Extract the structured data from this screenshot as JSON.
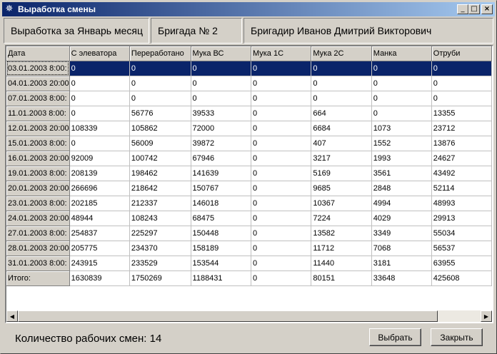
{
  "window": {
    "title": "Выработка смены",
    "minimize_glyph": "_",
    "maximize_glyph": "□",
    "close_glyph": "×",
    "icon": "gear-icon",
    "titlebar_color": "#0a246a"
  },
  "info": {
    "period": "Выработка за Январь месяц",
    "brigade": "Бригада № 2",
    "foreman": "Бригадир Иванов Дмитрий Викторович"
  },
  "table": {
    "columns": [
      "Дата",
      "С элеватора",
      "Переработано",
      "Мука ВС",
      "Мука 1С",
      "Мука 2С",
      "Манка",
      "Отруби"
    ],
    "rows": [
      [
        "03.01.2003 8:00:",
        "0",
        "0",
        "0",
        "0",
        "0",
        "0",
        "0"
      ],
      [
        "04.01.2003 20:00",
        "0",
        "0",
        "0",
        "0",
        "0",
        "0",
        "0"
      ],
      [
        "07.01.2003 8:00:",
        "0",
        "0",
        "0",
        "0",
        "0",
        "0",
        "0"
      ],
      [
        "11.01.2003 8:00:",
        "0",
        "56776",
        "39533",
        "0",
        "664",
        "0",
        "13355"
      ],
      [
        "12.01.2003 20:00",
        "108339",
        "105862",
        "72000",
        "0",
        "6684",
        "1073",
        "23712"
      ],
      [
        "15.01.2003 8:00:",
        "0",
        "56009",
        "39872",
        "0",
        "407",
        "1552",
        "13876"
      ],
      [
        "16.01.2003 20:00",
        "92009",
        "100742",
        "67946",
        "0",
        "3217",
        "1993",
        "24627"
      ],
      [
        "19.01.2003 8:00:",
        "208139",
        "198462",
        "141639",
        "0",
        "5169",
        "3561",
        "43492"
      ],
      [
        "20.01.2003 20:00",
        "266696",
        "218642",
        "150767",
        "0",
        "9685",
        "2848",
        "52114"
      ],
      [
        "23.01.2003 8:00:",
        "202185",
        "212337",
        "146018",
        "0",
        "10367",
        "4994",
        "48993"
      ],
      [
        "24.01.2003 20:00",
        "48944",
        "108243",
        "68475",
        "0",
        "7224",
        "4029",
        "29913"
      ],
      [
        "27.01.2003 8:00:",
        "254837",
        "225297",
        "150448",
        "0",
        "13582",
        "3349",
        "55034"
      ],
      [
        "28.01.2003 20:00",
        "205775",
        "234370",
        "158189",
        "0",
        "11712",
        "7068",
        "56537"
      ],
      [
        "31.01.2003 8:00:",
        "243915",
        "233529",
        "153544",
        "0",
        "11440",
        "3181",
        "63955"
      ],
      [
        "Итого:",
        "1630839",
        "1750269",
        "1188431",
        "0",
        "80151",
        "33648",
        "425608"
      ]
    ],
    "selected_row": 0,
    "selection_color": "#0a246a"
  },
  "scrollbar": {
    "left_arrow": "◀",
    "right_arrow": "▶"
  },
  "footer": {
    "shifts_label": "Количество рабочих смен:  14",
    "select_button": "Выбрать",
    "close_button": "Закрыть"
  }
}
